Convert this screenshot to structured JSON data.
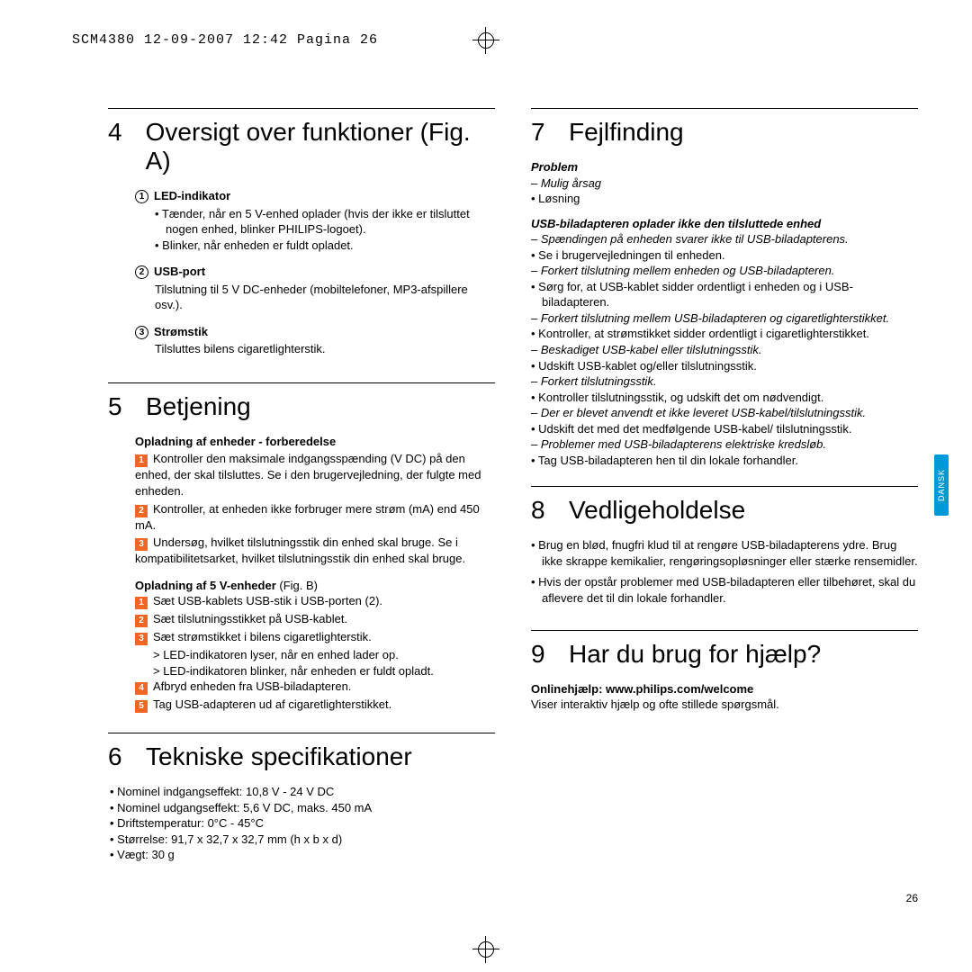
{
  "header": "SCM4380  12-09-2007  12:42  Pagina 26",
  "tab_label": "DANSK",
  "page_number": "26",
  "colors": {
    "accent": "#f26522",
    "tab_bg": "#0099d8",
    "tab_fg": "#ffffff"
  },
  "left": {
    "s4": {
      "num": "4",
      "title": "Oversigt over funktioner (Fig. A)",
      "items": [
        {
          "n": "1",
          "head": "LED-indikator",
          "lines": [
            "Tænder, når en 5 V-enhed oplader (hvis der ikke er tilsluttet nogen enhed, blinker PHILIPS-logoet).",
            "Blinker, når enheden er fuldt opladet."
          ]
        },
        {
          "n": "2",
          "head": "USB-port",
          "lines": [
            "Tilslutning til 5 V DC-enheder (mobiltelefoner, MP3-afspillere osv.)."
          ]
        },
        {
          "n": "3",
          "head": "Strømstik",
          "lines": [
            "Tilsluttes bilens cigaretlighterstik."
          ]
        }
      ]
    },
    "s5": {
      "num": "5",
      "title": "Betjening",
      "block1_head": "Opladning af enheder - forberedelse",
      "block1": [
        "Kontroller den maksimale indgangsspænding (V DC) på den enhed, der skal tilsluttes. Se i den brugervejledning, der fulgte med enheden.",
        "Kontroller, at enheden ikke forbruger mere strøm (mA) end 450 mA.",
        "Undersøg, hvilket tilslutningsstik din enhed skal bruge. Se i kompatibilitetsarket, hvilket tilslutningsstik din enhed skal bruge."
      ],
      "block2_head": "Opladning af 5 V-enheder (Fig. B)",
      "block2_head_bold": "Opladning af 5 V-enheder",
      "block2_head_rest": " (Fig. B)",
      "block2": [
        "Sæt USB-kablets USB-stik i USB-porten (2).",
        "Sæt tilslutningsstikket på USB-kablet.",
        "Sæt strømstikket i bilens cigaretlighterstik.",
        "Afbryd enheden fra USB-biladapteren.",
        "Tag USB-adapteren ud af cigaretlighterstikket."
      ],
      "block2_sub": [
        "> LED-indikatoren lyser, når en enhed lader op.",
        "> LED-indikatoren blinker, når enheden er fuldt opladt."
      ]
    },
    "s6": {
      "num": "6",
      "title": "Tekniske specifikationer",
      "items": [
        "Nominel indgangseffekt: 10,8 V - 24 V DC",
        "Nominel udgangseffekt: 5,6 V DC, maks. 450 mA",
        "Driftstemperatur: 0°C - 45°C",
        "Størrelse: 91,7 x 32,7 x 32,7 mm (h x b x d)",
        "Vægt: 30 g"
      ]
    }
  },
  "right": {
    "s7": {
      "num": "7",
      "title": "Fejlfinding",
      "problem_head": "Problem",
      "cause_label": "– Mulig årsag",
      "solution_label": "• Løsning",
      "case_head": "USB-biladapteren oplader ikke den tilsluttede enhed",
      "rows": [
        {
          "cause": "Spændingen på enheden svarer ikke til USB-biladapterens.",
          "sol": "Se i brugervejledningen til enheden."
        },
        {
          "cause": "Forkert tilslutning mellem enheden og USB-biladapteren.",
          "sol": "Sørg for, at USB-kablet sidder ordentligt i enheden og i USB-biladapteren."
        },
        {
          "cause": "Forkert tilslutning mellem USB-biladapteren og cigaretlighterstikket.",
          "sol": "Kontroller, at strømstikket sidder ordentligt i cigaretlighterstikket."
        },
        {
          "cause": "Beskadiget USB-kabel eller tilslutningsstik.",
          "sol": "Udskift USB-kablet og/eller tilslutningsstik."
        },
        {
          "cause": "Forkert tilslutningsstik.",
          "sol": "Kontroller tilslutningsstik, og udskift det om nødvendigt."
        },
        {
          "cause": "Der er blevet anvendt et ikke leveret USB-kabel/tilslutningsstik.",
          "sol": "Udskift det med det medfølgende USB-kabel/ tilslutningsstik."
        },
        {
          "cause": "Problemer med USB-biladapterens elektriske kredsløb.",
          "sol": "Tag USB-biladapteren hen til din lokale forhandler."
        }
      ]
    },
    "s8": {
      "num": "8",
      "title": "Vedligeholdelse",
      "items": [
        "Brug en blød, fnugfri klud til at rengøre USB-biladapterens ydre. Brug ikke skrappe kemikalier, rengøringsopløsninger eller stærke rensemidler.",
        "Hvis der opstår problemer med USB-biladapteren eller tilbehøret, skal du aflevere det til din lokale forhandler."
      ]
    },
    "s9": {
      "num": "9",
      "title": "Har du brug for hjælp?",
      "online_head": "Onlinehjælp: www.philips.com/welcome",
      "online_text": "Viser interaktiv hjælp og ofte stillede spørgsmål."
    }
  }
}
